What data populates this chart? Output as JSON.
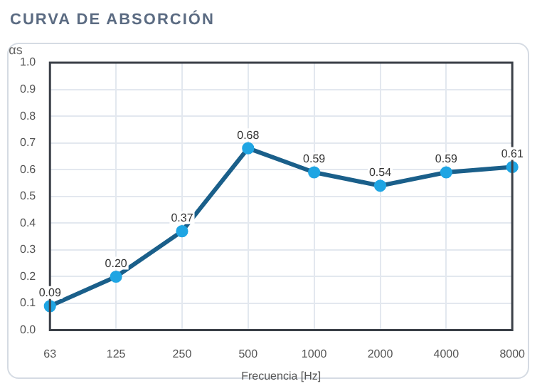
{
  "chart_data": {
    "type": "line",
    "title": "CURVA DE ABSORCIÓN",
    "xlabel": "Frecuencia [Hz]",
    "ylabel": "αs",
    "categories": [
      "63",
      "125",
      "250",
      "500",
      "1000",
      "2000",
      "4000",
      "8000"
    ],
    "series": [
      {
        "color": "#1a5f8a",
        "values": [
          0.09,
          0.2,
          0.37,
          0.68,
          0.59,
          0.54,
          0.59,
          0.61
        ],
        "value_labels": [
          "0.09",
          "0.20",
          "0.37",
          "0.68",
          "0.59",
          "0.54",
          "0.59",
          "0.61"
        ]
      }
    ],
    "ylim": [
      0,
      1
    ],
    "yticks": [
      {
        "value": 0,
        "label": "0.0"
      },
      0.1,
      0.2,
      0.3,
      0.4,
      0.5,
      0.6,
      0.7,
      0.8,
      0.9,
      {
        "value": 1,
        "label": "1.0"
      }
    ],
    "grid": true,
    "marker": "circle",
    "line_style": "solid",
    "legend": false
  }
}
